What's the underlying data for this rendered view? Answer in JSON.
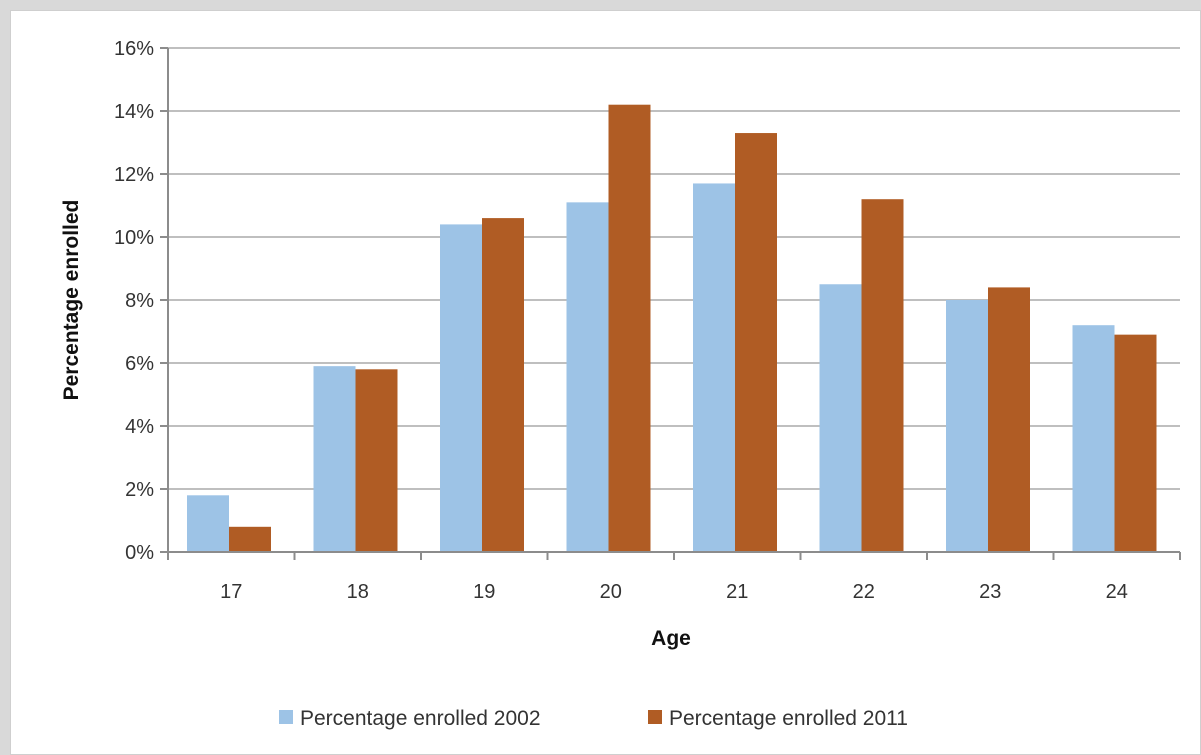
{
  "chart_data": {
    "type": "bar",
    "title": "",
    "xlabel": "Age",
    "ylabel": "Percentage enrolled",
    "categories": [
      "17",
      "18",
      "19",
      "20",
      "21",
      "22",
      "23",
      "24"
    ],
    "series": [
      {
        "name": "Percentage enrolled 2002",
        "color": "#9dc3e6",
        "values": [
          1.8,
          5.9,
          10.4,
          11.1,
          11.7,
          8.5,
          8.0,
          7.2
        ]
      },
      {
        "name": "Percentage enrolled 2011",
        "color": "#b05c24",
        "values": [
          0.8,
          5.8,
          10.6,
          14.2,
          13.3,
          11.2,
          8.4,
          6.9
        ]
      }
    ],
    "ylim": [
      0,
      16
    ],
    "yticks": [
      0,
      2,
      4,
      6,
      8,
      10,
      12,
      14,
      16
    ],
    "ytick_labels": [
      "0%",
      "2%",
      "4%",
      "6%",
      "8%",
      "10%",
      "12%",
      "14%",
      "16%"
    ],
    "grid": true,
    "legend_position": "bottom"
  }
}
